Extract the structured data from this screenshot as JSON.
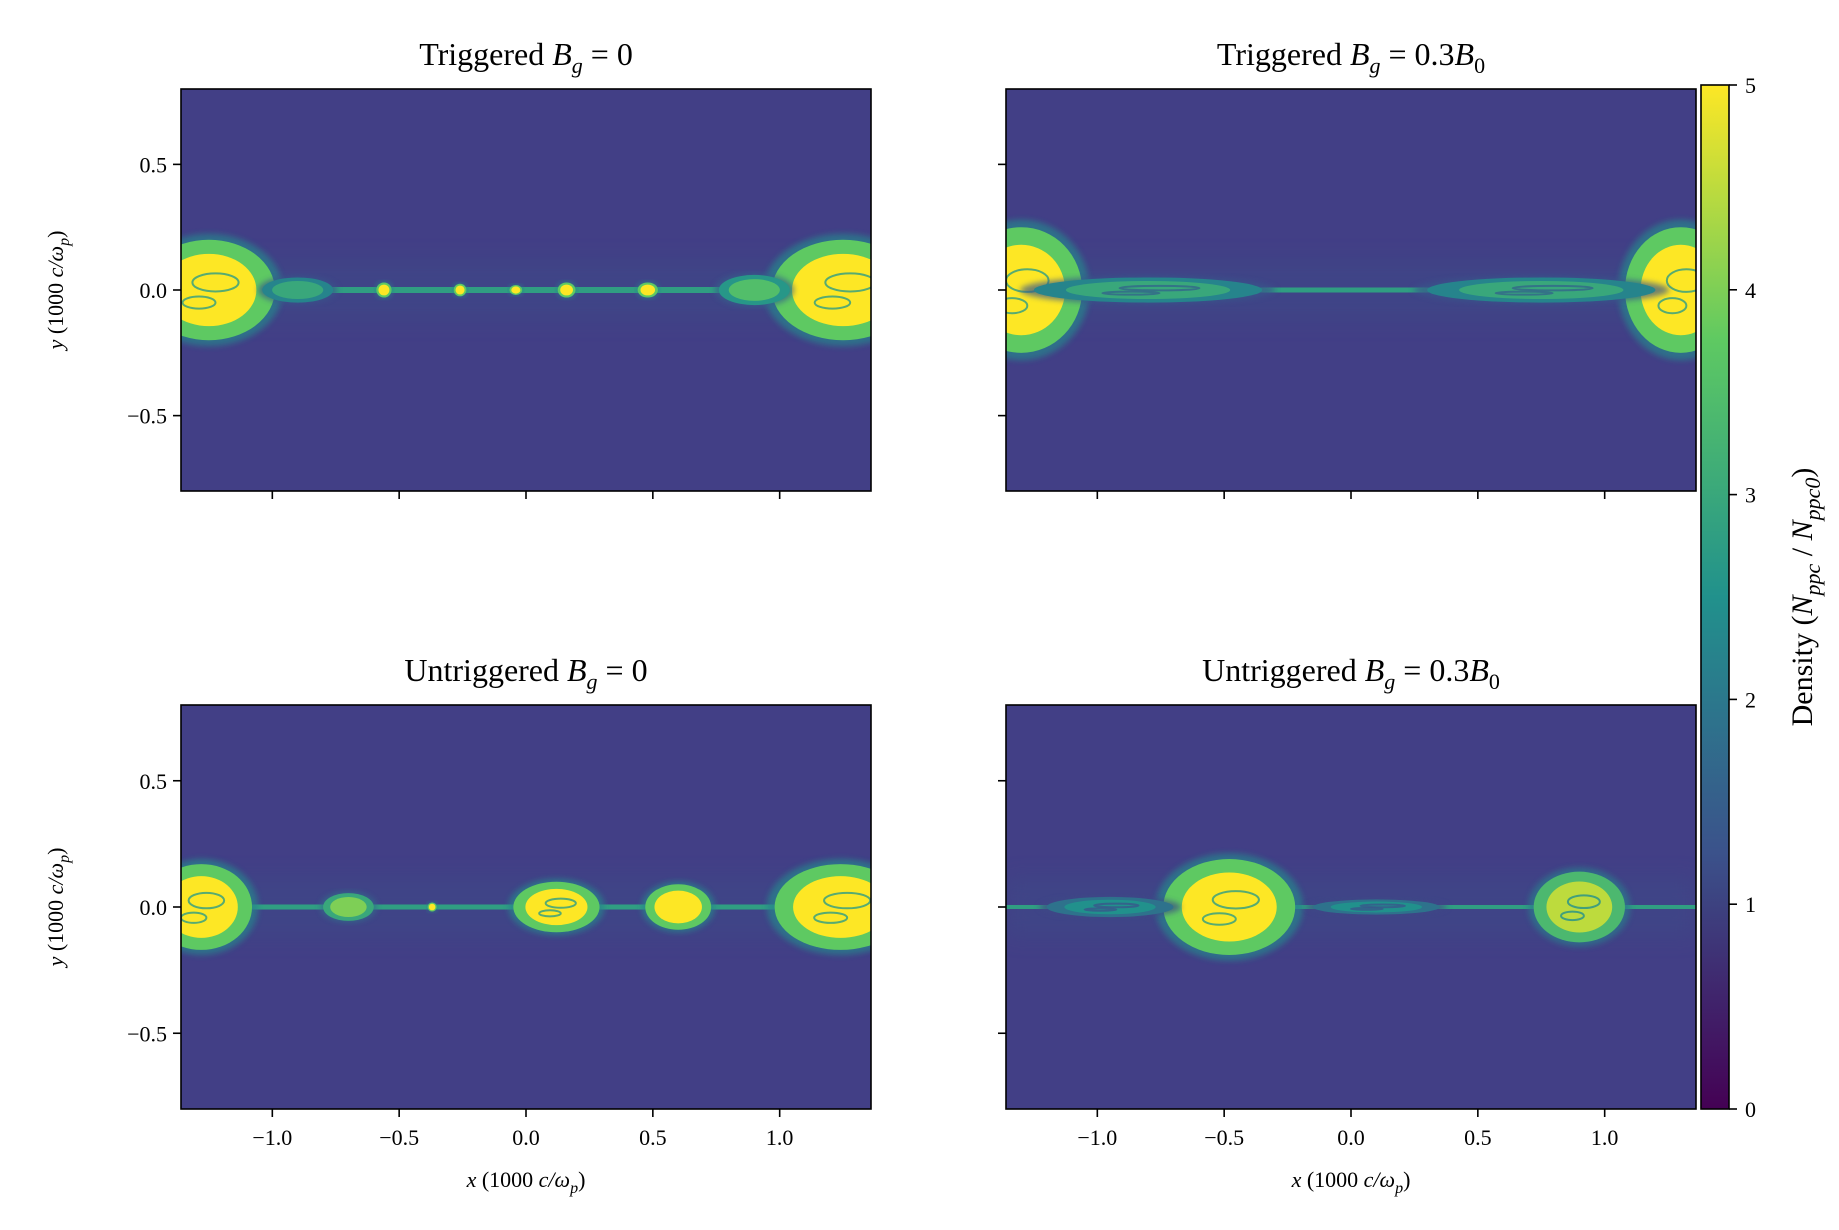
{
  "figure": {
    "colorbar": {
      "label": "Density (N_ppc / N_ppc0)",
      "label_parts": {
        "prefix": "Density (",
        "n1": "N",
        "s1": "ppc",
        "mid": " / ",
        "n2": "N",
        "s2": "ppc0",
        "suffix": ")"
      },
      "range": [
        0,
        5
      ],
      "ticks": [
        "0",
        "1",
        "2",
        "3",
        "4",
        "5"
      ],
      "colormap": "viridis",
      "colors": [
        "#440154",
        "#3b528b",
        "#21918c",
        "#5ec962",
        "#fde725"
      ]
    },
    "background_color": "#423f86"
  },
  "chart_data": [
    {
      "type": "heatmap",
      "title": "Triggered B_g = 0",
      "title_parts": {
        "pre": "Triggered ",
        "sym": "B",
        "sub": "g",
        "post": " = 0"
      },
      "xlabel": "x (1000 c/ω_p)",
      "ylabel": "y (1000 c/ω_p)",
      "xlim": [
        -1.36,
        1.36
      ],
      "ylim": [
        -0.8,
        0.8
      ],
      "xticks": [
        -1.0,
        -0.5,
        0.0,
        0.5,
        1.0
      ],
      "yticks": [
        0.5,
        0.0,
        -0.5
      ],
      "ytick_labels": [
        "0.5",
        "0.0",
        "−0.5"
      ],
      "show_x_ticklabels": false,
      "show_y_ticklabels": true,
      "show_xlabel": false,
      "show_ylabel": true,
      "current_sheet": {
        "y": 0.0,
        "half_thickness": 0.012
      },
      "islands": [
        {
          "x": -1.25,
          "y": 0.0,
          "rx": 0.26,
          "ry": 0.2,
          "density": 5
        },
        {
          "x": 1.25,
          "y": 0.0,
          "rx": 0.28,
          "ry": 0.2,
          "density": 5
        },
        {
          "x": -0.9,
          "y": 0.0,
          "rx": 0.14,
          "ry": 0.05,
          "density": 3
        },
        {
          "x": 0.9,
          "y": 0.0,
          "rx": 0.14,
          "ry": 0.06,
          "density": 3.5
        },
        {
          "x": -0.56,
          "y": 0.0,
          "rx": 0.03,
          "ry": 0.03,
          "density": 5
        },
        {
          "x": -0.26,
          "y": 0.0,
          "rx": 0.025,
          "ry": 0.025,
          "density": 5
        },
        {
          "x": -0.04,
          "y": 0.0,
          "rx": 0.025,
          "ry": 0.02,
          "density": 5
        },
        {
          "x": 0.16,
          "y": 0.0,
          "rx": 0.035,
          "ry": 0.03,
          "density": 5
        },
        {
          "x": 0.48,
          "y": 0.0,
          "rx": 0.04,
          "ry": 0.03,
          "density": 5
        }
      ]
    },
    {
      "type": "heatmap",
      "title": "Triggered B_g = 0.3B_0",
      "title_parts": {
        "pre": "Triggered ",
        "sym": "B",
        "sub": "g",
        "post": " = 0.3",
        "sym2": "B",
        "sub2": "0"
      },
      "xlabel": "x (1000 c/ω_p)",
      "ylabel": "y (1000 c/ω_p)",
      "xlim": [
        -1.36,
        1.36
      ],
      "ylim": [
        -0.8,
        0.8
      ],
      "xticks": [
        -1.0,
        -0.5,
        0.0,
        0.5,
        1.0
      ],
      "yticks": [
        0.5,
        0.0,
        -0.5
      ],
      "ytick_labels": [
        "0.5",
        "0.0",
        "−0.5"
      ],
      "show_x_ticklabels": false,
      "show_y_ticklabels": false,
      "show_xlabel": false,
      "show_ylabel": false,
      "current_sheet": {
        "y": 0.0,
        "half_thickness": 0.01
      },
      "islands": [
        {
          "x": -1.3,
          "y": 0.0,
          "rx": 0.24,
          "ry": 0.25,
          "density": 5
        },
        {
          "x": 1.3,
          "y": 0.0,
          "rx": 0.22,
          "ry": 0.25,
          "density": 5
        },
        {
          "x": -0.8,
          "y": 0.0,
          "rx": 0.45,
          "ry": 0.05,
          "density": 3
        },
        {
          "x": 0.75,
          "y": 0.0,
          "rx": 0.45,
          "ry": 0.05,
          "density": 3
        }
      ]
    },
    {
      "type": "heatmap",
      "title": "Untriggered B_g = 0",
      "title_parts": {
        "pre": "Untriggered ",
        "sym": "B",
        "sub": "g",
        "post": " = 0"
      },
      "xlabel": "x (1000 c/ω_p)",
      "ylabel": "y (1000 c/ω_p)",
      "xlim": [
        -1.36,
        1.36
      ],
      "ylim": [
        -0.8,
        0.8
      ],
      "xticks": [
        -1.0,
        -0.5,
        0.0,
        0.5,
        1.0
      ],
      "yticks": [
        0.5,
        0.0,
        -0.5
      ],
      "xtick_labels": [
        "−1.0",
        "−0.5",
        "0.0",
        "0.5",
        "1.0"
      ],
      "ytick_labels": [
        "0.5",
        "0.0",
        "−0.5"
      ],
      "show_x_ticklabels": true,
      "show_y_ticklabels": true,
      "show_xlabel": true,
      "show_ylabel": true,
      "current_sheet": {
        "y": 0.0,
        "half_thickness": 0.01
      },
      "islands": [
        {
          "x": -1.28,
          "y": 0.0,
          "rx": 0.2,
          "ry": 0.17,
          "density": 5
        },
        {
          "x": 1.24,
          "y": 0.0,
          "rx": 0.26,
          "ry": 0.17,
          "density": 5
        },
        {
          "x": -0.7,
          "y": 0.0,
          "rx": 0.1,
          "ry": 0.055,
          "density": 4
        },
        {
          "x": -0.37,
          "y": 0.0,
          "rx": 0.018,
          "ry": 0.018,
          "density": 5
        },
        {
          "x": 0.12,
          "y": 0.0,
          "rx": 0.17,
          "ry": 0.1,
          "density": 5
        },
        {
          "x": 0.6,
          "y": 0.0,
          "rx": 0.13,
          "ry": 0.09,
          "density": 5
        }
      ]
    },
    {
      "type": "heatmap",
      "title": "Untriggered B_g = 0.3B_0",
      "title_parts": {
        "pre": "Untriggered ",
        "sym": "B",
        "sub": "g",
        "post": " = 0.3",
        "sym2": "B",
        "sub2": "0"
      },
      "xlabel": "x (1000 c/ω_p)",
      "ylabel": "y (1000 c/ω_p)",
      "xlim": [
        -1.36,
        1.36
      ],
      "ylim": [
        -0.8,
        0.8
      ],
      "xticks": [
        -1.0,
        -0.5,
        0.0,
        0.5,
        1.0
      ],
      "yticks": [
        0.5,
        0.0,
        -0.5
      ],
      "xtick_labels": [
        "−1.0",
        "−0.5",
        "0.0",
        "0.5",
        "1.0"
      ],
      "ytick_labels": [
        "0.5",
        "0.0",
        "−0.5"
      ],
      "show_x_ticklabels": true,
      "show_y_ticklabels": false,
      "show_xlabel": true,
      "show_ylabel": false,
      "current_sheet": {
        "y": 0.0,
        "half_thickness": 0.008
      },
      "islands": [
        {
          "x": -0.48,
          "y": 0.0,
          "rx": 0.26,
          "ry": 0.19,
          "density": 5
        },
        {
          "x": 0.9,
          "y": 0.0,
          "rx": 0.18,
          "ry": 0.14,
          "density": 4.5
        },
        {
          "x": -0.95,
          "y": 0.0,
          "rx": 0.25,
          "ry": 0.04,
          "density": 2.5
        },
        {
          "x": 0.1,
          "y": 0.0,
          "rx": 0.25,
          "ry": 0.03,
          "density": 2.5
        }
      ]
    }
  ]
}
